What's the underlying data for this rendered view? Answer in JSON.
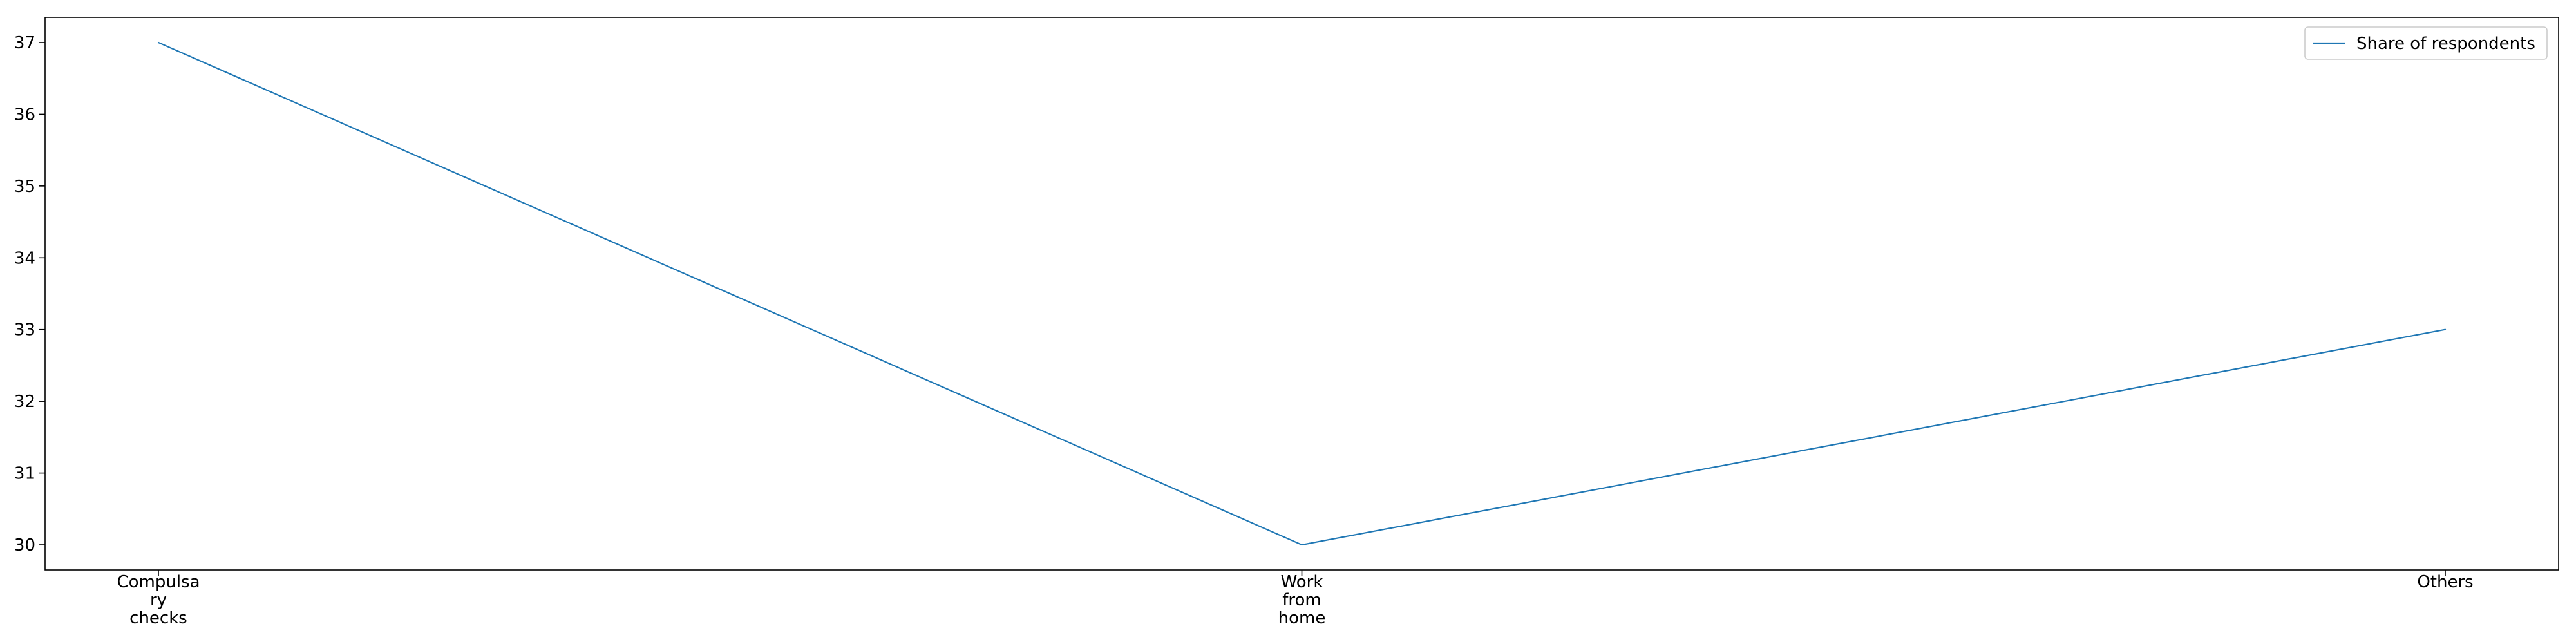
{
  "chart_data": {
    "type": "line",
    "title": "",
    "xlabel": "",
    "ylabel": "",
    "categories": [
      "Compulsary checks",
      "Work from home",
      "Others"
    ],
    "category_tick_lines": [
      [
        "Compulsa",
        "ry",
        "checks"
      ],
      [
        "Work",
        "from",
        "home"
      ],
      [
        "Others"
      ]
    ],
    "series": [
      {
        "name": "Share of respondents",
        "values": [
          37,
          30,
          33
        ],
        "color": "#1f77b4"
      }
    ],
    "ylim": [
      29.65,
      37.35
    ],
    "yticks": [
      30,
      31,
      32,
      33,
      34,
      35,
      36,
      37
    ],
    "grid": false,
    "legend": "top-right"
  }
}
